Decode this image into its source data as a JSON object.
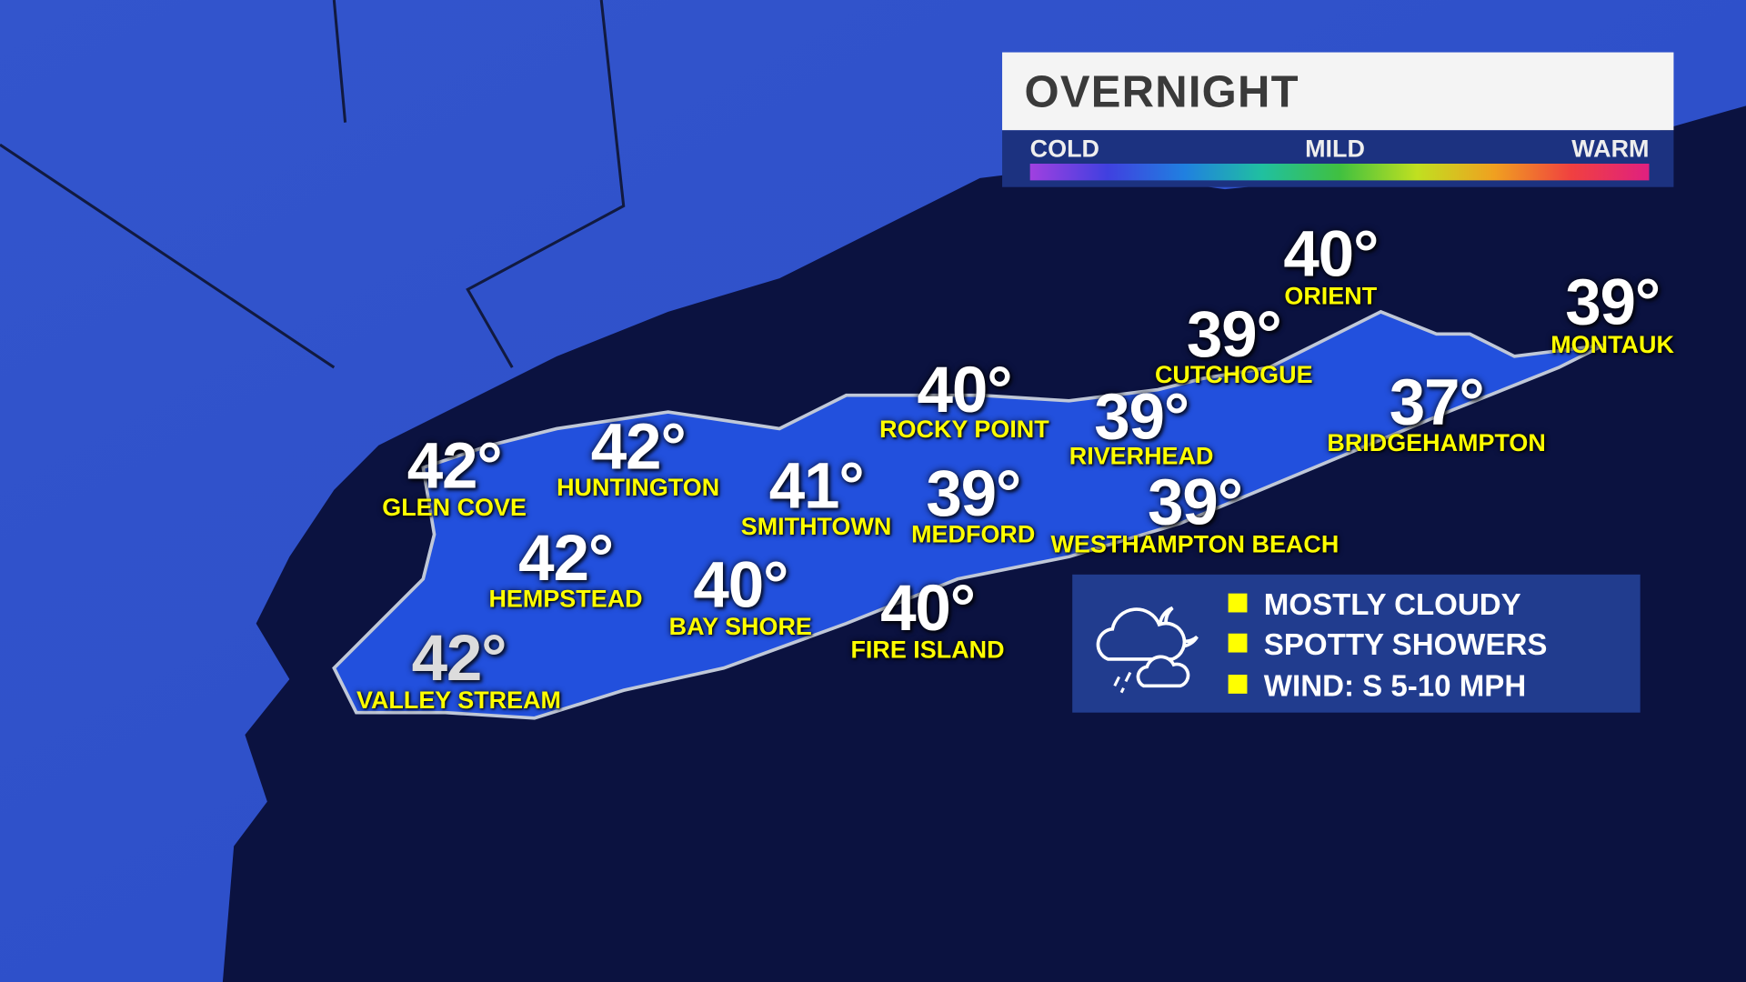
{
  "header": {
    "title": "OVERNIGHT"
  },
  "temp_scale": {
    "labels": [
      "COLD",
      "MILD",
      "WARM"
    ]
  },
  "locations": [
    {
      "name": "ORIENT",
      "temp": "40°"
    },
    {
      "name": "MONTAUK",
      "temp": "39°"
    },
    {
      "name": "CUTCHOGUE",
      "temp": "39°"
    },
    {
      "name": "ROCKY POINT",
      "temp": "40°"
    },
    {
      "name": "RIVERHEAD",
      "temp": "39°"
    },
    {
      "name": "BRIDGEHAMPTON",
      "temp": "37°"
    },
    {
      "name": "GLEN COVE",
      "temp": "42°"
    },
    {
      "name": "HUNTINGTON",
      "temp": "42°"
    },
    {
      "name": "SMITHTOWN",
      "temp": "41°"
    },
    {
      "name": "MEDFORD",
      "temp": "39°"
    },
    {
      "name": "WESTHAMPTON BEACH",
      "temp": "39°"
    },
    {
      "name": "HEMPSTEAD",
      "temp": "42°"
    },
    {
      "name": "BAY SHORE",
      "temp": "40°"
    },
    {
      "name": "FIRE ISLAND",
      "temp": "40°"
    },
    {
      "name": "VALLEY STREAM",
      "temp": "42°"
    }
  ],
  "legend": {
    "icon": "cloud-moon-rain-icon",
    "items": [
      "MOSTLY CLOUDY",
      "SPOTTY SHOWERS",
      "WIND: S 5-10 MPH"
    ]
  },
  "colors": {
    "land": "#2f5ad8",
    "water": "#0b1240",
    "label": "#ffff00",
    "panel": "#213c8e"
  }
}
